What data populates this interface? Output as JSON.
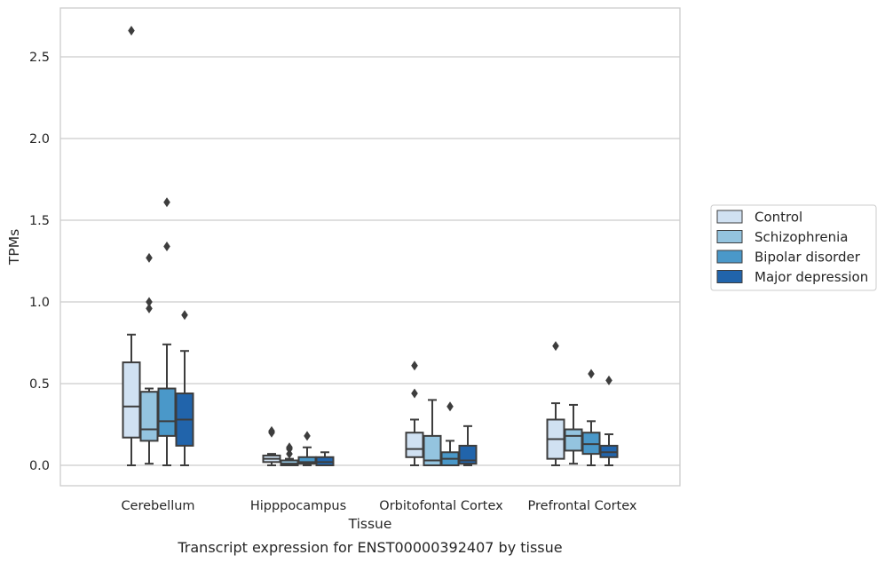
{
  "caption": "Transcript expression for ENST00000392407 by tissue",
  "chart_data": {
    "type": "box",
    "xlabel": "Tissue",
    "ylabel": "TPMs",
    "ylim": [
      -0.13,
      2.8
    ],
    "yticks": [
      0.0,
      0.5,
      1.0,
      1.5,
      2.0,
      2.5
    ],
    "ytick_labels": [
      "0.0",
      "0.5",
      "1.0",
      "1.5",
      "2.0",
      "2.5"
    ],
    "grid": true,
    "legend_position": "right",
    "categories": [
      "Cerebellum",
      "Hipppocampus",
      "Orbitofontal Cortex",
      "Prefrontal Cortex"
    ],
    "series": [
      {
        "name": "Control",
        "color": "#d0e1f2",
        "boxes": [
          {
            "min": 0.0,
            "q1": 0.17,
            "median": 0.36,
            "q3": 0.63,
            "max": 0.8,
            "outliers": [
              2.66
            ]
          },
          {
            "min": 0.0,
            "q1": 0.02,
            "median": 0.04,
            "q3": 0.06,
            "max": 0.07,
            "outliers": [
              0.2,
              0.21
            ]
          },
          {
            "min": 0.0,
            "q1": 0.05,
            "median": 0.1,
            "q3": 0.2,
            "max": 0.28,
            "outliers": [
              0.44,
              0.61
            ]
          },
          {
            "min": 0.0,
            "q1": 0.04,
            "median": 0.16,
            "q3": 0.28,
            "max": 0.38,
            "outliers": [
              0.73
            ]
          }
        ]
      },
      {
        "name": "Schizophrenia",
        "color": "#94c4df",
        "boxes": [
          {
            "min": 0.01,
            "q1": 0.15,
            "median": 0.22,
            "q3": 0.45,
            "max": 0.47,
            "outliers": [
              0.96,
              1.0,
              1.27
            ]
          },
          {
            "min": 0.0,
            "q1": 0.0,
            "median": 0.01,
            "q3": 0.03,
            "max": 0.04,
            "outliers": [
              0.07,
              0.1,
              0.11
            ]
          },
          {
            "min": 0.0,
            "q1": 0.0,
            "median": 0.03,
            "q3": 0.18,
            "max": 0.4,
            "outliers": []
          },
          {
            "min": 0.01,
            "q1": 0.09,
            "median": 0.18,
            "q3": 0.22,
            "max": 0.37,
            "outliers": []
          }
        ]
      },
      {
        "name": "Bipolar disorder",
        "color": "#4a98c9",
        "boxes": [
          {
            "min": 0.0,
            "q1": 0.18,
            "median": 0.27,
            "q3": 0.47,
            "max": 0.74,
            "outliers": [
              1.34,
              1.61
            ]
          },
          {
            "min": 0.0,
            "q1": 0.01,
            "median": 0.02,
            "q3": 0.05,
            "max": 0.11,
            "outliers": [
              0.18
            ]
          },
          {
            "min": 0.0,
            "q1": 0.0,
            "median": 0.04,
            "q3": 0.08,
            "max": 0.15,
            "outliers": [
              0.36
            ]
          },
          {
            "min": 0.0,
            "q1": 0.07,
            "median": 0.13,
            "q3": 0.2,
            "max": 0.27,
            "outliers": [
              0.56
            ]
          }
        ]
      },
      {
        "name": "Major depression",
        "color": "#2164ab",
        "boxes": [
          {
            "min": 0.0,
            "q1": 0.12,
            "median": 0.28,
            "q3": 0.44,
            "max": 0.7,
            "outliers": [
              0.92
            ]
          },
          {
            "min": 0.0,
            "q1": 0.0,
            "median": 0.02,
            "q3": 0.05,
            "max": 0.08,
            "outliers": []
          },
          {
            "min": 0.0,
            "q1": 0.01,
            "median": 0.03,
            "q3": 0.12,
            "max": 0.24,
            "outliers": []
          },
          {
            "min": 0.0,
            "q1": 0.05,
            "median": 0.08,
            "q3": 0.12,
            "max": 0.19,
            "outliers": [
              0.52
            ]
          }
        ]
      }
    ]
  }
}
